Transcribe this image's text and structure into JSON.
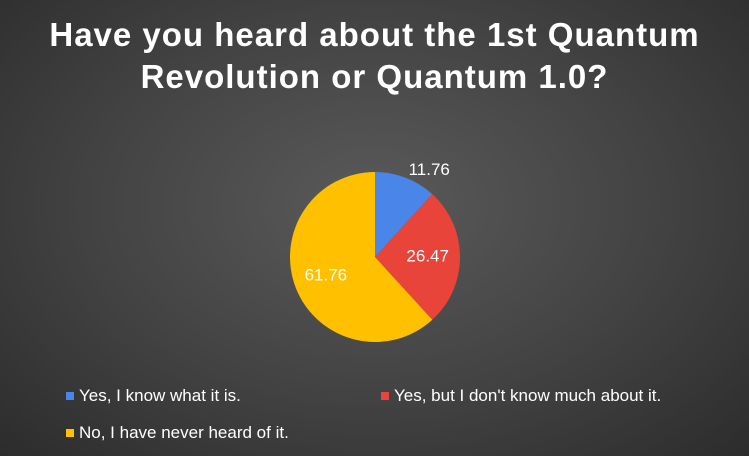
{
  "colors": {
    "blue": "#4a86e8",
    "red": "#e8443a",
    "yellow": "#ffc000"
  },
  "chart_data": {
    "type": "pie",
    "title": "Have you heard about the 1st Quantum Revolution or Quantum 1.0?",
    "categories": [
      "Yes, I know what it is.",
      "Yes, but I don't know much about it.",
      "No, I have never heard of it."
    ],
    "values": [
      11.76,
      26.47,
      61.76
    ],
    "data_labels": [
      "11.76",
      "26.47",
      "61.76"
    ],
    "legend_position": "bottom"
  }
}
